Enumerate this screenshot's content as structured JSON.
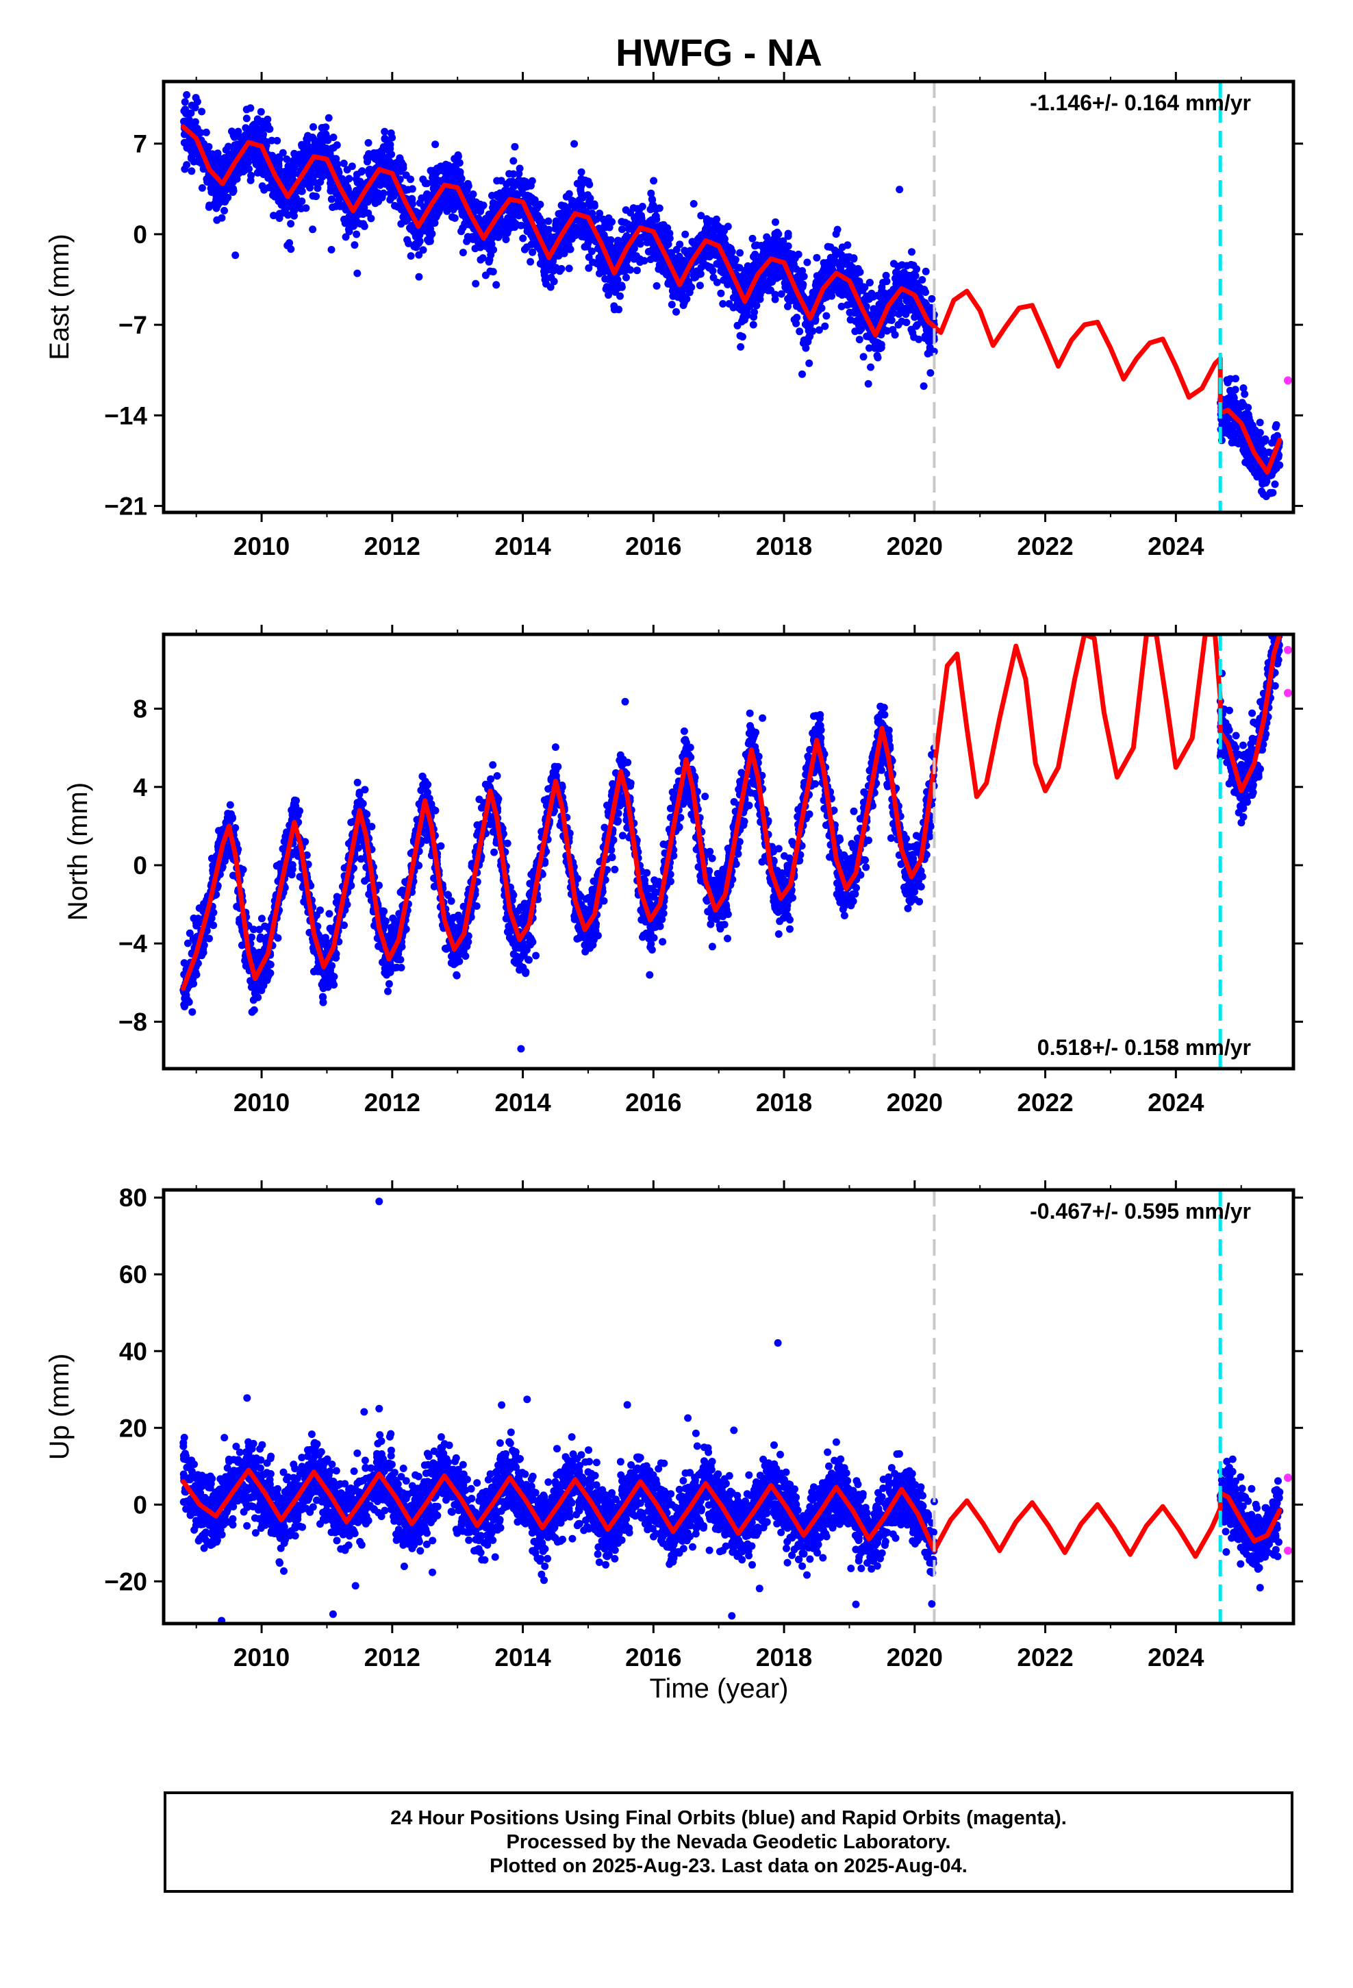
{
  "title": "HWFG - NA",
  "xlabel": "Time (year)",
  "x_ticks": [
    2010,
    2012,
    2014,
    2016,
    2018,
    2020,
    2022,
    2024
  ],
  "colors": {
    "final_orbits": "#0000ff",
    "rapid_orbits": "#ff33ff",
    "model": "#ff0000",
    "gray_line": "#c8c8c8",
    "cyan_line": "#00e5ee"
  },
  "caption": {
    "line1": "24 Hour Positions Using Final Orbits (blue) and Rapid Orbits (magenta).",
    "line2": "Processed by the Nevada Geodetic Laboratory.",
    "line3": "Plotted on 2025-Aug-23. Last data on 2025-Aug-04."
  },
  "chart_data": [
    {
      "type": "scatter",
      "component": "east",
      "ylabel": "East (mm)",
      "rate_label": "-1.146+/- 0.164 mm/yr",
      "rate_position": "top-right",
      "xlim": [
        2008.5,
        2025.8
      ],
      "ylim": [
        -21.5,
        11.8
      ],
      "y_ticks": [
        7,
        0,
        -7,
        -14,
        -21
      ],
      "y_tick_labels": [
        "7",
        "0",
        "−7",
        "−14",
        "−21"
      ],
      "vertical_lines": [
        {
          "x": 2020.3,
          "color": "gray"
        },
        {
          "x": 2024.68,
          "color": "cyan"
        }
      ],
      "data_range": {
        "start": 2008.8,
        "gap_start": 2020.3,
        "gap_end": 2024.68,
        "end": 2025.59
      },
      "model_segments": [
        {
          "x": [
            2008.8,
            2009.0,
            2009.2,
            2009.4,
            2009.6,
            2009.8,
            2010.0,
            2010.2,
            2010.4,
            2010.6,
            2010.8,
            2011.0,
            2011.2,
            2011.4,
            2011.6,
            2011.8,
            2012.0,
            2012.2,
            2012.4,
            2012.6,
            2012.8,
            2013.0,
            2013.2,
            2013.4,
            2013.6,
            2013.8,
            2014.0,
            2014.2,
            2014.4,
            2014.6,
            2014.8,
            2015.0,
            2015.2,
            2015.4,
            2015.6,
            2015.8,
            2016.0,
            2016.2,
            2016.4,
            2016.6,
            2016.8,
            2017.0,
            2017.2,
            2017.4,
            2017.6,
            2017.8,
            2018.0,
            2018.2,
            2018.4,
            2018.6,
            2018.8,
            2019.0,
            2019.2,
            2019.4,
            2019.6,
            2019.8,
            2020.0,
            2020.2,
            2020.4,
            2020.6,
            2020.8,
            2021.0,
            2021.2,
            2021.4,
            2021.6,
            2021.8,
            2022.0,
            2022.2,
            2022.4,
            2022.6,
            2022.8,
            2023.0,
            2023.2,
            2023.4,
            2023.6,
            2023.8,
            2024.0,
            2024.2,
            2024.4,
            2024.6,
            2024.68
          ],
          "y": [
            8.3,
            7.4,
            5.0,
            3.9,
            5.6,
            7.1,
            6.8,
            4.6,
            2.9,
            4.4,
            6.0,
            5.8,
            3.6,
            1.8,
            3.5,
            5.0,
            4.7,
            2.5,
            0.6,
            2.3,
            3.8,
            3.6,
            1.5,
            -0.3,
            1.3,
            2.7,
            2.5,
            0.3,
            -1.8,
            0.0,
            1.6,
            1.3,
            -0.7,
            -3.0,
            -1.0,
            0.5,
            0.2,
            -1.8,
            -3.9,
            -2.0,
            -0.5,
            -0.9,
            -3.0,
            -5.2,
            -3.1,
            -1.9,
            -2.2,
            -4.5,
            -6.5,
            -4.2,
            -3.0,
            -3.6,
            -5.8,
            -7.8,
            -5.5,
            -4.2,
            -4.7,
            -6.7,
            -7.6,
            -5.1,
            -4.4,
            -5.9,
            -8.6,
            -7.1,
            -5.7,
            -5.5,
            -7.8,
            -10.2,
            -8.2,
            -7.0,
            -6.8,
            -8.8,
            -11.2,
            -9.6,
            -8.4,
            -8.1,
            -10.2,
            -12.6,
            -11.9,
            -10.0,
            -9.6
          ]
        },
        {
          "x": [
            2024.68,
            2024.8,
            2025.0,
            2025.2,
            2025.4,
            2025.59
          ],
          "y": [
            -13.8,
            -13.6,
            -14.6,
            -16.9,
            -18.4,
            -15.9
          ]
        }
      ],
      "scatter_seed": 101,
      "scatter_noise_mm": 1.2,
      "rapid_orbits": [
        {
          "x": 2025.59,
          "y": -11.3
        }
      ]
    },
    {
      "type": "scatter",
      "component": "north",
      "ylabel": "North (mm)",
      "rate_label": "0.518+/- 0.158 mm/yr",
      "rate_position": "bottom-right",
      "xlim": [
        2008.5,
        2025.8
      ],
      "ylim": [
        -10.4,
        11.8
      ],
      "y_ticks": [
        8,
        4,
        0,
        -4,
        -8
      ],
      "y_tick_labels": [
        "8",
        "4",
        "0",
        "−4",
        "−8"
      ],
      "vertical_lines": [
        {
          "x": 2020.3,
          "color": "gray"
        },
        {
          "x": 2024.68,
          "color": "cyan"
        }
      ],
      "data_range": {
        "start": 2008.8,
        "gap_start": 2020.3,
        "gap_end": 2024.68,
        "end": 2025.59
      },
      "model_segments": [
        {
          "x": [
            2008.8,
            2009.0,
            2009.2,
            2009.4,
            2009.5,
            2009.6,
            2009.8,
            2009.9,
            2010.1,
            2010.3,
            2010.5,
            2010.6,
            2010.8,
            2010.95,
            2011.1,
            2011.3,
            2011.5,
            2011.6,
            2011.8,
            2011.95,
            2012.1,
            2012.3,
            2012.5,
            2012.6,
            2012.8,
            2012.95,
            2013.1,
            2013.3,
            2013.5,
            2013.6,
            2013.8,
            2013.95,
            2014.1,
            2014.3,
            2014.5,
            2014.6,
            2014.8,
            2014.95,
            2015.1,
            2015.3,
            2015.5,
            2015.6,
            2015.8,
            2015.95,
            2016.1,
            2016.3,
            2016.5,
            2016.6,
            2016.8,
            2016.95,
            2017.1,
            2017.3,
            2017.5,
            2017.6,
            2017.8,
            2017.95,
            2018.1,
            2018.3,
            2018.5,
            2018.6,
            2018.8,
            2018.95,
            2019.1,
            2019.3,
            2019.5,
            2019.6,
            2019.8,
            2019.95,
            2020.1,
            2020.3,
            2020.5,
            2020.65,
            2020.8,
            2020.95,
            2021.1,
            2021.3,
            2021.55,
            2021.7,
            2021.85,
            2022.0,
            2022.2,
            2022.45,
            2022.6,
            2022.75,
            2022.9,
            2023.1,
            2023.35,
            2023.55,
            2023.7,
            2023.85,
            2024.0,
            2024.25,
            2024.45,
            2024.6,
            2024.68
          ],
          "y": [
            -6.3,
            -4.5,
            -2.0,
            1.0,
            2.0,
            0.5,
            -4.5,
            -5.8,
            -4.5,
            -1.0,
            2.2,
            1.0,
            -3.5,
            -5.2,
            -4.2,
            -0.8,
            2.8,
            1.5,
            -3.2,
            -4.8,
            -3.8,
            -0.3,
            3.3,
            2.0,
            -2.8,
            -4.3,
            -3.5,
            0.2,
            3.8,
            2.5,
            -2.3,
            -3.8,
            -3.0,
            0.8,
            4.3,
            3.0,
            -1.8,
            -3.3,
            -2.5,
            1.3,
            4.8,
            3.5,
            -1.3,
            -2.8,
            -2.0,
            1.8,
            5.4,
            4.0,
            -0.8,
            -2.3,
            -1.5,
            2.3,
            5.9,
            4.5,
            -0.3,
            -1.7,
            -1.0,
            2.8,
            6.4,
            5.0,
            0.3,
            -1.2,
            -0.4,
            3.3,
            7.0,
            5.5,
            0.8,
            -0.6,
            0.3,
            5.0,
            10.2,
            10.8,
            7.0,
            3.5,
            4.2,
            7.5,
            11.2,
            9.5,
            5.2,
            3.8,
            5.0,
            9.5,
            11.8,
            11.6,
            7.8,
            4.5,
            6.0,
            11.8,
            11.8,
            8.5,
            5.0,
            6.5,
            11.8,
            11.8,
            8.5
          ]
        },
        {
          "x": [
            2024.68,
            2024.8,
            2025.0,
            2025.2,
            2025.35,
            2025.5,
            2025.59
          ],
          "y": [
            6.8,
            6.2,
            3.8,
            5.2,
            7.5,
            10.8,
            11.8
          ]
        }
      ],
      "scatter_seed": 202,
      "scatter_noise_mm": 0.8,
      "rapid_orbits": [
        {
          "x": 2025.59,
          "y": 11.0
        },
        {
          "x": 2025.59,
          "y": 8.8
        }
      ]
    },
    {
      "type": "scatter",
      "component": "up",
      "ylabel": "Up (mm)",
      "xlabel": "Time (year)",
      "rate_label": "-0.467+/- 0.595 mm/yr",
      "rate_position": "top-right",
      "xlim": [
        2008.5,
        2025.8
      ],
      "ylim": [
        -31,
        82
      ],
      "y_ticks": [
        80,
        60,
        40,
        20,
        0,
        -20
      ],
      "y_tick_labels": [
        "80",
        "60",
        "40",
        "20",
        "0",
        "−20"
      ],
      "vertical_lines": [
        {
          "x": 2020.3,
          "color": "gray"
        },
        {
          "x": 2024.68,
          "color": "cyan"
        }
      ],
      "data_range": {
        "start": 2008.8,
        "gap_start": 2020.3,
        "gap_end": 2024.68,
        "end": 2025.59
      },
      "model_segments": [
        {
          "x": [
            2008.8,
            2009.05,
            2009.3,
            2009.55,
            2009.8,
            2010.05,
            2010.3,
            2010.55,
            2010.8,
            2011.05,
            2011.3,
            2011.55,
            2011.8,
            2012.05,
            2012.3,
            2012.55,
            2012.8,
            2013.05,
            2013.3,
            2013.55,
            2013.8,
            2014.05,
            2014.3,
            2014.55,
            2014.8,
            2015.05,
            2015.3,
            2015.55,
            2015.8,
            2016.05,
            2016.3,
            2016.55,
            2016.8,
            2017.05,
            2017.3,
            2017.55,
            2017.8,
            2018.05,
            2018.3,
            2018.55,
            2018.8,
            2019.05,
            2019.3,
            2019.55,
            2019.8,
            2020.05,
            2020.3,
            2020.55,
            2020.8,
            2021.05,
            2021.3,
            2021.55,
            2021.8,
            2022.05,
            2022.3,
            2022.55,
            2022.8,
            2023.05,
            2023.3,
            2023.55,
            2023.8,
            2024.05,
            2024.3,
            2024.55,
            2024.68
          ],
          "y": [
            6.0,
            0.0,
            -3.0,
            3.0,
            9.0,
            3.0,
            -4.0,
            2.0,
            8.5,
            2.5,
            -4.5,
            1.5,
            8.0,
            2.0,
            -5.0,
            1.0,
            7.5,
            1.5,
            -5.5,
            0.5,
            7.0,
            1.0,
            -6.0,
            0.0,
            6.5,
            0.5,
            -6.5,
            -0.5,
            6.0,
            0.0,
            -7.0,
            -1.0,
            5.5,
            -0.5,
            -7.5,
            -1.5,
            5.0,
            -1.0,
            -8.0,
            -2.0,
            4.5,
            -1.5,
            -9.0,
            -3.0,
            4.0,
            -2.5,
            -12.0,
            -4.0,
            1.0,
            -5.0,
            -12.0,
            -4.5,
            0.5,
            -5.5,
            -12.5,
            -5.0,
            0.0,
            -6.0,
            -13.0,
            -5.5,
            -0.5,
            -6.5,
            -13.5,
            -6.0,
            -1.0
          ]
        },
        {
          "x": [
            2024.68,
            2024.8,
            2025.0,
            2025.2,
            2025.4,
            2025.59
          ],
          "y": [
            3.0,
            2.0,
            -4.0,
            -9.5,
            -8.0,
            -1.5
          ]
        }
      ],
      "scatter_seed": 303,
      "scatter_noise_mm": 4.5,
      "outliers": [
        {
          "x": 2011.8,
          "y": 79
        },
        {
          "x": 2011.8,
          "y": 25
        },
        {
          "x": 2015.6,
          "y": 26
        },
        {
          "x": 2017.2,
          "y": -29
        },
        {
          "x": 2019.1,
          "y": -26
        }
      ],
      "rapid_orbits": [
        {
          "x": 2025.59,
          "y": 7.0
        },
        {
          "x": 2025.59,
          "y": -12.0
        }
      ]
    }
  ]
}
